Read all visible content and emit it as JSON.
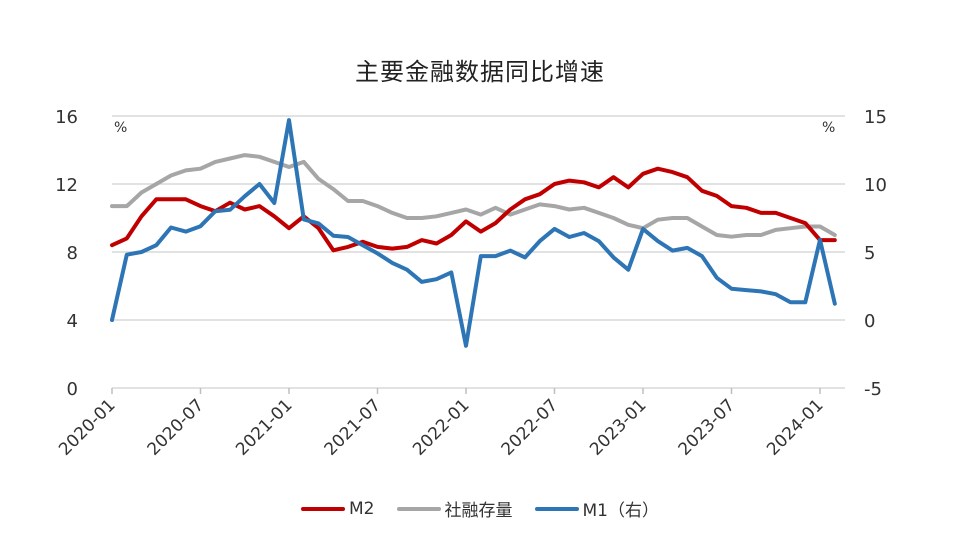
{
  "title": "主要金融数据同比增速",
  "colors": {
    "M2": "#C00000",
    "TSF": "#A6A6A6",
    "M1": "#2E75B6",
    "grid": "#D9D9D9",
    "axis_text": "#333333"
  },
  "left_axis": {
    "unit": "%",
    "ticks": [
      "16",
      "12",
      "8",
      "4",
      "0"
    ]
  },
  "right_axis": {
    "unit": "%",
    "ticks": [
      "15",
      "10",
      "5",
      "0",
      "-5"
    ]
  },
  "legend": [
    {
      "label": "M2",
      "color": "#C00000"
    },
    {
      "label": "社融存量",
      "color": "#A6A6A6"
    },
    {
      "label": "M1（右）",
      "color": "#2E75B6"
    }
  ],
  "chart_data": {
    "type": "line",
    "title": "主要金融数据同比增速",
    "xlabel": "",
    "ylabel": "%",
    "ylabel_right": "%",
    "ylim": [
      0,
      16
    ],
    "ylim_right": [
      -5,
      15
    ],
    "grid": true,
    "legend_position": "bottom",
    "x_tick_labels": [
      "2020-01",
      "2020-07",
      "2021-01",
      "2021-07",
      "2022-01",
      "2022-07",
      "2023-01",
      "2023-07",
      "2024-01"
    ],
    "x": [
      "2020-01",
      "2020-02",
      "2020-03",
      "2020-04",
      "2020-05",
      "2020-06",
      "2020-07",
      "2020-08",
      "2020-09",
      "2020-10",
      "2020-11",
      "2020-12",
      "2021-01",
      "2021-02",
      "2021-03",
      "2021-04",
      "2021-05",
      "2021-06",
      "2021-07",
      "2021-08",
      "2021-09",
      "2021-10",
      "2021-11",
      "2021-12",
      "2022-01",
      "2022-02",
      "2022-03",
      "2022-04",
      "2022-05",
      "2022-06",
      "2022-07",
      "2022-08",
      "2022-09",
      "2022-10",
      "2022-11",
      "2022-12",
      "2023-01",
      "2023-02",
      "2023-03",
      "2023-04",
      "2023-05",
      "2023-06",
      "2023-07",
      "2023-08",
      "2023-09",
      "2023-10",
      "2023-11",
      "2023-12",
      "2024-01",
      "2024-02"
    ],
    "series": [
      {
        "name": "M2",
        "axis": "left",
        "values": [
          8.4,
          8.8,
          10.1,
          11.1,
          11.1,
          11.1,
          10.7,
          10.4,
          10.9,
          10.5,
          10.7,
          10.1,
          9.4,
          10.1,
          9.4,
          8.1,
          8.3,
          8.6,
          8.3,
          8.2,
          8.3,
          8.7,
          8.5,
          9.0,
          9.8,
          9.2,
          9.7,
          10.5,
          11.1,
          11.4,
          12.0,
          12.2,
          12.1,
          11.8,
          12.4,
          11.8,
          12.6,
          12.9,
          12.7,
          12.4,
          11.6,
          11.3,
          10.7,
          10.6,
          10.3,
          10.3,
          10.0,
          9.7,
          8.7,
          8.7
        ]
      },
      {
        "name": "社融存量",
        "axis": "left",
        "values": [
          10.7,
          10.7,
          11.5,
          12.0,
          12.5,
          12.8,
          12.9,
          13.3,
          13.5,
          13.7,
          13.6,
          13.3,
          13.0,
          13.3,
          12.3,
          11.7,
          11.0,
          11.0,
          10.7,
          10.3,
          10.0,
          10.0,
          10.1,
          10.3,
          10.5,
          10.2,
          10.6,
          10.2,
          10.5,
          10.8,
          10.7,
          10.5,
          10.6,
          10.3,
          10.0,
          9.6,
          9.4,
          9.9,
          10.0,
          10.0,
          9.5,
          9.0,
          8.9,
          9.0,
          9.0,
          9.3,
          9.4,
          9.5,
          9.5,
          9.0
        ]
      },
      {
        "name": "M1（右）",
        "axis": "right",
        "values": [
          0.0,
          4.8,
          5.0,
          5.5,
          6.8,
          6.5,
          6.9,
          8.0,
          8.1,
          9.1,
          10.0,
          8.6,
          14.7,
          7.4,
          7.1,
          6.2,
          6.1,
          5.5,
          4.9,
          4.2,
          3.7,
          2.8,
          3.0,
          3.5,
          -1.9,
          4.7,
          4.7,
          5.1,
          4.6,
          5.8,
          6.7,
          6.1,
          6.4,
          5.8,
          4.6,
          3.7,
          6.7,
          5.8,
          5.1,
          5.3,
          4.7,
          3.1,
          2.3,
          2.2,
          2.1,
          1.9,
          1.3,
          1.3,
          5.9,
          1.2
        ]
      }
    ]
  }
}
